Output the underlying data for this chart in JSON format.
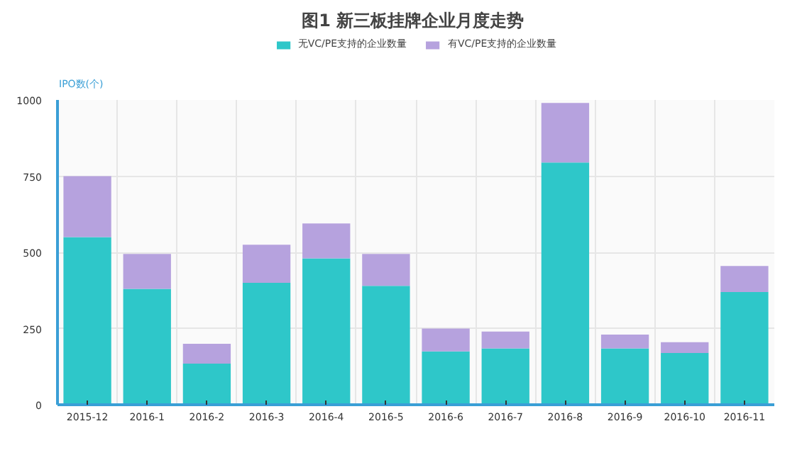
{
  "chart_data": {
    "type": "bar",
    "title": "图1  新三板挂牌企业月度走势",
    "ylabel": "IPO数(个)",
    "stacked": true,
    "legend": "top",
    "grid": true,
    "categories": [
      "2015-12",
      "2016-1",
      "2016-2",
      "2016-3",
      "2016-4",
      "2016-5",
      "2016-6",
      "2016-7",
      "2016-8",
      "2016-9",
      "2016-10",
      "2016-11"
    ],
    "series": [
      {
        "name": "无VC/PE支持的企业数量",
        "color": "#2ec7c9",
        "values": [
          550,
          380,
          135,
          400,
          480,
          390,
          175,
          185,
          795,
          185,
          170,
          370
        ]
      },
      {
        "name": "有VC/PE支持的企业数量",
        "color": "#b6a2de",
        "values": [
          200,
          115,
          65,
          125,
          115,
          105,
          75,
          55,
          195,
          45,
          35,
          85
        ]
      }
    ],
    "ylim": [
      0,
      1000
    ],
    "yticks": [
      0,
      250,
      500,
      750,
      1000
    ]
  }
}
